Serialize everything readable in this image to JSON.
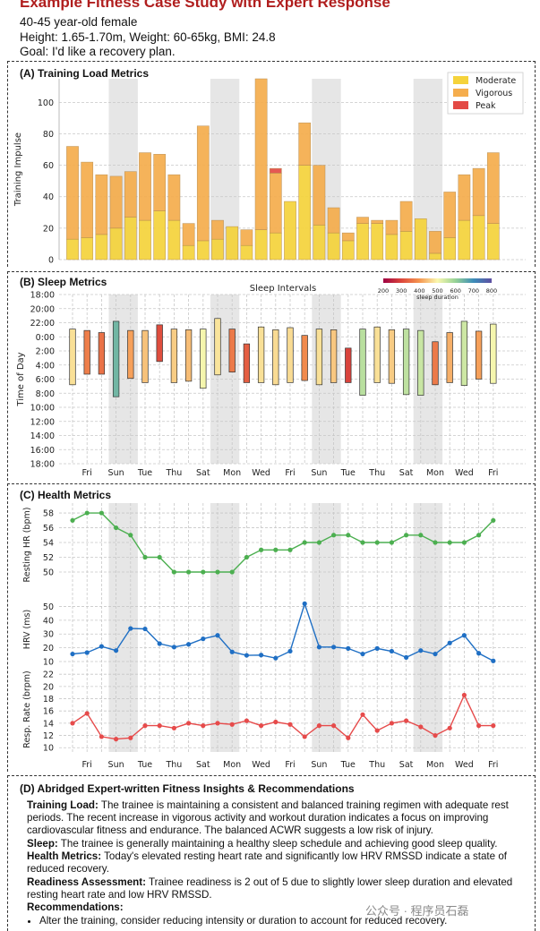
{
  "header": {
    "title": "Example Fitness Case Study with Expert Response",
    "demographic": "40-45 year-old female",
    "measurements": "Height: 1.65-1.70m, Weight: 60-65kg, BMI: 24.8",
    "goal": "Goal: I'd like a recovery plan."
  },
  "panels": {
    "a": "(A) Training Load Metrics",
    "b": "(B) Sleep Metrics",
    "c": "(C) Health Metrics",
    "d": "(D) Abridged Expert-written Fitness Insights & Recommendations"
  },
  "chart_data": [
    {
      "type": "bar",
      "title": "(A) Training Load Metrics",
      "ylabel": "Training Impulse",
      "ylim": [
        0,
        115
      ],
      "yticks": [
        "0",
        "20",
        "40",
        "60",
        "80",
        "100"
      ],
      "days": 30,
      "weekend_shading": [
        [
          3,
          4
        ],
        [
          10,
          11
        ],
        [
          17,
          18
        ],
        [
          24,
          25
        ]
      ],
      "legend": [
        "Moderate",
        "Vigorous",
        "Peak"
      ],
      "colors": {
        "moderate": "#f5d33b",
        "vigorous": "#f5ad4d",
        "peak": "#e34a45",
        "shade": "#e6e6e6"
      },
      "series": [
        {
          "name": "Moderate",
          "values": [
            13,
            14,
            16,
            20,
            27,
            25,
            31,
            25,
            9,
            12,
            13,
            21,
            9,
            19,
            17,
            37,
            60,
            22,
            17,
            12,
            23,
            23,
            16,
            18,
            26,
            4,
            14,
            25,
            28,
            23
          ]
        },
        {
          "name": "Vigorous",
          "values": [
            59,
            48,
            38,
            33,
            29,
            43,
            36,
            29,
            14,
            73,
            12,
            0,
            10,
            96,
            38,
            0,
            27,
            38,
            16,
            5,
            4,
            2,
            9,
            19,
            0,
            14,
            29,
            29,
            30,
            45
          ]
        },
        {
          "name": "Peak",
          "values": [
            0,
            0,
            0,
            0,
            0,
            0,
            0,
            0,
            0,
            0,
            0,
            0,
            0,
            0,
            3,
            0,
            0,
            0,
            0,
            0,
            0,
            0,
            0,
            0,
            0,
            0,
            0,
            0,
            0,
            0
          ]
        }
      ]
    },
    {
      "type": "bar",
      "title": "(B) Sleep Metrics",
      "subtitle": "Sleep Intervals",
      "ylabel": "Time of Day",
      "yticks": [
        "18:00",
        "20:00",
        "22:00",
        "0:00",
        "2:00",
        "4:00",
        "6:00",
        "8:00",
        "10:00",
        "12:00",
        "14:00",
        "16:00",
        "18:00"
      ],
      "colorbar_label": "sleep duration",
      "colorbar_ticks": [
        "200",
        "300",
        "400",
        "500",
        "600",
        "700",
        "800"
      ],
      "sleep_start_hours": [
        22.9,
        23.1,
        23.4,
        21.8,
        23.1,
        23.1,
        22.3,
        22.9,
        23.0,
        22.9,
        21.4,
        22.9,
        25.0,
        22.6,
        23.0,
        22.7,
        23.8,
        22.9,
        23.0,
        25.6,
        22.9,
        22.6,
        23.0,
        22.9,
        23.1,
        24.7,
        23.4,
        21.8,
        23.2,
        22.2
      ],
      "sleep_end_hours": [
        30.8,
        29.3,
        29.3,
        32.5,
        29.9,
        30.5,
        27.5,
        30.5,
        30.3,
        31.3,
        29.4,
        29.0,
        30.5,
        30.5,
        30.8,
        30.5,
        30.2,
        30.8,
        30.5,
        30.5,
        32.3,
        30.5,
        30.6,
        32.2,
        32.3,
        30.8,
        30.5,
        30.9,
        30.0,
        30.6
      ],
      "sleep_duration": [
        475,
        370,
        355,
        640,
        410,
        445,
        310,
        455,
        440,
        505,
        480,
        365,
        330,
        475,
        470,
        470,
        385,
        475,
        450,
        295,
        565,
        475,
        455,
        560,
        550,
        365,
        425,
        545,
        410,
        505
      ]
    },
    {
      "type": "line",
      "title": "(C) Health Metrics",
      "xticks": [
        "Fri",
        "Sun",
        "Tue",
        "Thu",
        "Sat",
        "Mon",
        "Wed",
        "Fri",
        "Sun",
        "Tue",
        "Thu",
        "Sat",
        "Mon",
        "Wed",
        "Fri"
      ],
      "series": [
        {
          "name": "Resting HR (bpm)",
          "color": "#4caf50",
          "yticks": [
            "50",
            "52",
            "54",
            "56",
            "58"
          ],
          "ylim": [
            48.3,
            59.1
          ],
          "values": [
            57,
            58,
            58,
            56,
            55,
            52,
            52,
            50,
            50,
            50,
            50,
            50,
            52,
            53,
            53,
            53,
            54,
            54,
            55,
            55,
            54,
            54,
            54,
            55,
            55,
            54,
            54,
            54,
            55,
            57
          ]
        },
        {
          "name": "HRV (ms)",
          "color": "#1f6fc4",
          "yticks": [
            "10",
            "20",
            "30",
            "40",
            "50"
          ],
          "ylim": [
            8.7,
            58.1
          ],
          "values": [
            15.5,
            16.5,
            21,
            18,
            34,
            33.7,
            23,
            20.5,
            22.5,
            26.5,
            29,
            17,
            14.5,
            14.7,
            12.5,
            17.5,
            52,
            20.5,
            20.5,
            19.5,
            15.5,
            19.5,
            17.5,
            13,
            18,
            15.5,
            23.5,
            29,
            16,
            10.5
          ]
        },
        {
          "name": "Resp. Rate (brpm)",
          "color": "#e64b4b",
          "yticks": [
            "10",
            "12",
            "14",
            "16",
            "18",
            "20",
            "22"
          ],
          "ylim": [
            9.3,
            23.2
          ],
          "values": [
            14,
            15.6,
            11.8,
            11.4,
            11.6,
            13.6,
            13.6,
            13.2,
            14,
            13.6,
            14,
            13.8,
            14.4,
            13.6,
            14.2,
            13.8,
            11.8,
            13.6,
            13.6,
            11.6,
            15.4,
            12.8,
            14,
            14.4,
            13.4,
            12,
            13.2,
            18.6,
            13.6,
            13.6
          ]
        }
      ]
    }
  ],
  "insights": {
    "training_label": "Training Load:",
    "training_text": " The trainee is maintaining a consistent and balanced training regimen with adequate rest periods. The recent increase in vigorous activity and workout duration indicates a focus on improving cardiovascular fitness and endurance. The balanced ACWR suggests a low risk of injury.",
    "sleep_label": "Sleep:",
    "sleep_text": " The trainee is generally maintaining a healthy sleep schedule and achieving good sleep quality.",
    "health_label": "Health Metrics:",
    "health_text": " Today's elevated resting heart rate and significantly low HRV RMSSD indicate a state of reduced recovery.",
    "readiness_label": "Readiness Assessment:",
    "readiness_text": " Trainee readiness is 2 out of 5 due to slightly lower sleep duration and elevated resting heart rate and low HRV RMSSD.",
    "recommendations_label": "Recommendations:",
    "recommendations": [
      "Alter the training, consider reducing intensity or duration to account for reduced recovery."
    ]
  },
  "watermark": "公众号 · 程序员石磊"
}
